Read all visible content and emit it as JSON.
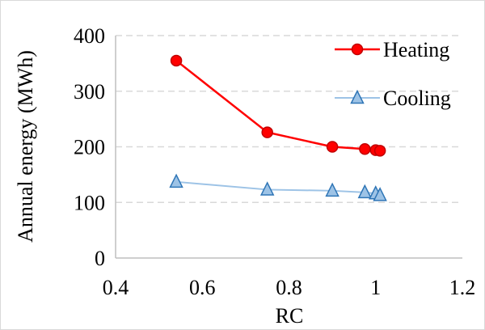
{
  "chart_data": {
    "type": "line",
    "xlabel": "RC",
    "ylabel": "Annual energy (MWh)",
    "xlim": [
      0.4,
      1.2
    ],
    "ylim": [
      0,
      400
    ],
    "xticks": [
      "0.4",
      "0.6",
      "0.8",
      "1",
      "1.2"
    ],
    "yticks": [
      "0",
      "100",
      "200",
      "300",
      "400"
    ],
    "grid": "horizontal dashed",
    "legend_position": "top-right",
    "series": [
      {
        "name": "Heating",
        "color": "#ff0000",
        "marker": "circle",
        "x": [
          0.54,
          0.75,
          0.9,
          0.975,
          1.0,
          1.01
        ],
        "y": [
          355,
          226,
          200,
          196,
          194,
          193
        ]
      },
      {
        "name": "Cooling",
        "color": "#9dc3e6",
        "marker": "triangle",
        "x": [
          0.54,
          0.75,
          0.9,
          0.975,
          1.0,
          1.01
        ],
        "y": [
          137,
          123,
          121,
          118,
          116,
          113
        ]
      }
    ]
  }
}
